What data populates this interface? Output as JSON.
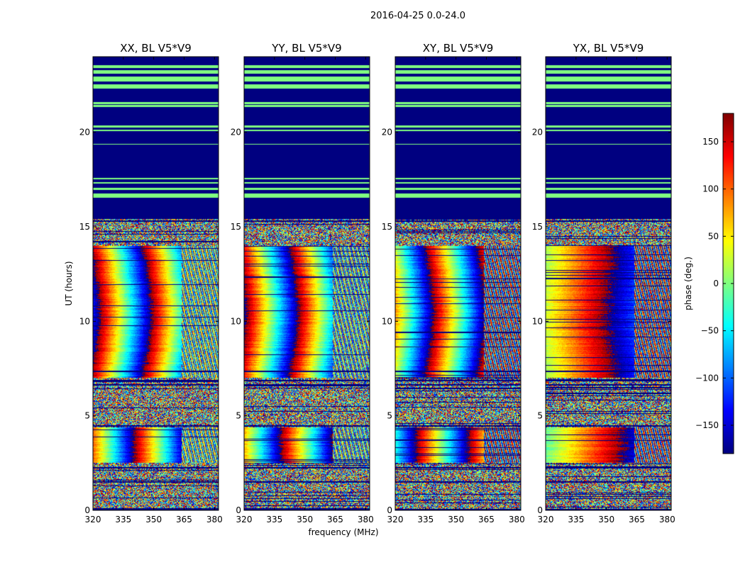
{
  "chart_data": {
    "type": "heatmap",
    "suptitle": "2016-04-25 0.0-24.0",
    "xlabel": "frequency (MHz)",
    "ylabel": "UT (hours)",
    "xlim": [
      320,
      382
    ],
    "ylim": [
      0,
      24
    ],
    "xticks": [
      320,
      335,
      350,
      365,
      380
    ],
    "yticks": [
      0,
      5,
      10,
      15,
      20
    ],
    "colorbar": {
      "label": "phase (deg.)",
      "range": [
        -180,
        180
      ],
      "ticks": [
        150,
        100,
        50,
        0,
        -50,
        -100,
        -150
      ],
      "tick_labels": [
        "150",
        "100",
        "50",
        "0",
        "−50",
        "−100",
        "−150"
      ],
      "colormap": "jet"
    },
    "flagged_value": -180,
    "rfi_band_start_mhz": 363.5,
    "panels": [
      {
        "title": "XX, BL V5*V9",
        "offset_deg": 160,
        "slope_deg_per_mhz": -14,
        "curve_amp": 60,
        "rfi": true
      },
      {
        "title": "YY, BL V5*V9",
        "offset_deg": 130,
        "slope_deg_per_mhz": -14,
        "curve_amp": 60,
        "rfi": true
      },
      {
        "title": "XY, BL V5*V9",
        "offset_deg": 20,
        "slope_deg_per_mhz": -14,
        "curve_amp": 60,
        "rfi": true
      },
      {
        "title": "YX, BL V5*V9",
        "offset_deg": 10,
        "slope_deg_per_mhz": 5,
        "curve_amp": 20,
        "rfi": true
      }
    ],
    "time_segments": [
      {
        "from": 0.0,
        "to": 2.5,
        "kind": "noise"
      },
      {
        "from": 2.5,
        "to": 4.4,
        "kind": "gradient"
      },
      {
        "from": 4.4,
        "to": 7.0,
        "kind": "noise"
      },
      {
        "from": 7.0,
        "to": 14.0,
        "kind": "gradient"
      },
      {
        "from": 14.0,
        "to": 15.5,
        "kind": "noise"
      },
      {
        "from": 15.5,
        "to": 24.0,
        "kind": "flagged"
      }
    ],
    "flag_lines_hours": [
      0.05,
      1.5,
      2.25,
      4.45,
      6.65,
      6.85,
      7.35,
      15.45,
      15.3
    ],
    "light_lines_hours": [
      [
        16.55,
        16.75
      ],
      [
        16.95,
        17.05
      ],
      [
        17.3,
        17.35
      ],
      [
        17.5,
        17.6
      ],
      [
        19.35,
        19.4
      ],
      [
        20.05,
        20.15
      ],
      [
        20.25,
        20.35
      ],
      [
        21.35,
        21.45
      ],
      [
        21.5,
        21.6
      ],
      [
        22.3,
        22.55
      ],
      [
        22.7,
        22.95
      ],
      [
        23.1,
        23.3
      ],
      [
        23.4,
        23.55
      ]
    ]
  }
}
